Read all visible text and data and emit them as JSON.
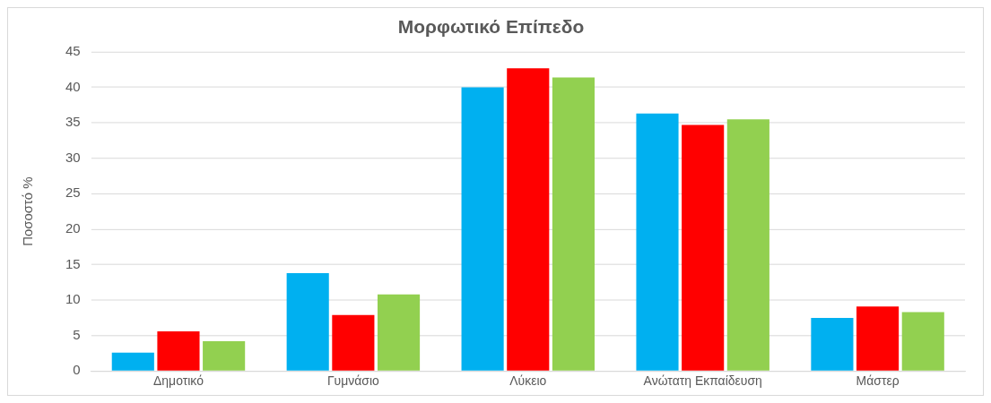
{
  "chart_data": {
    "type": "bar",
    "title": "Μορφωτικό Επίπεδο",
    "ylabel": "Ποσοστό %",
    "categories": [
      "Δημοτικό",
      "Γυμνάσιο",
      "Λύκειο",
      "Ανώτατη Εκπαίδευση",
      "Μάστερ"
    ],
    "series": [
      {
        "color": "#00b0f0",
        "values": [
          2.6,
          13.8,
          40,
          36.3,
          7.5
        ]
      },
      {
        "color": "#ff0000",
        "values": [
          5.6,
          7.9,
          42.7,
          34.7,
          9.1
        ]
      },
      {
        "color": "#92d050",
        "values": [
          4.2,
          10.8,
          41.4,
          35.5,
          8.3
        ]
      }
    ],
    "ylim": [
      0,
      45
    ],
    "yticks": [
      0,
      5,
      10,
      15,
      20,
      25,
      30,
      35,
      40,
      45
    ],
    "grid": "y",
    "legend": false
  }
}
